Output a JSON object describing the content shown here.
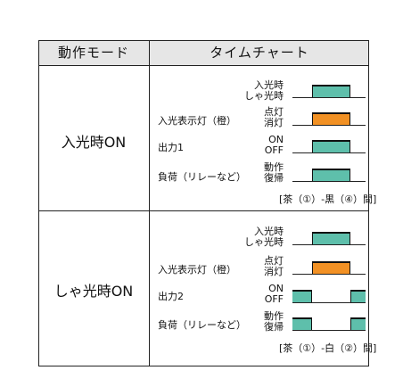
{
  "header": {
    "mode_col": "動作モード",
    "chart_col": "タイムチャート"
  },
  "rows": [
    {
      "mode": "入光時ON",
      "labels": [
        "入光表示灯（橙）",
        "出力1",
        "負荷（リレーなど）"
      ],
      "states": [
        [
          "入光時",
          "しゃ光時"
        ],
        [
          "点灯",
          "消灯"
        ],
        [
          "ON",
          "OFF"
        ],
        [
          "動作",
          "復帰"
        ]
      ],
      "note": "[茶（①）-黒（④）間]"
    },
    {
      "mode": "しゃ光時ON",
      "labels": [
        "入光表示灯（橙）",
        "出力2",
        "負荷（リレーなど）"
      ],
      "states": [
        [
          "入光時",
          "しゃ光時"
        ],
        [
          "点灯",
          "消灯"
        ],
        [
          "ON",
          "OFF"
        ],
        [
          "動作",
          "復帰"
        ]
      ],
      "note": "[茶（①）-白（②）間]"
    }
  ],
  "colors": {
    "pulse_green": "#5ebfab",
    "pulse_orange": "#f29124",
    "header_bg": "#e6e6e6"
  }
}
